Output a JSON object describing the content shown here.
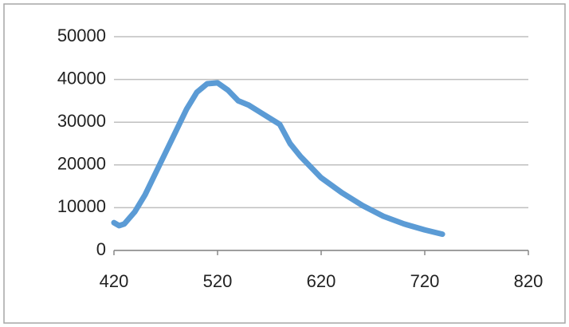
{
  "chart_data": {
    "type": "line",
    "x": [
      420,
      425,
      430,
      440,
      450,
      460,
      470,
      480,
      490,
      500,
      510,
      520,
      530,
      540,
      550,
      560,
      570,
      580,
      590,
      600,
      620,
      640,
      660,
      680,
      700,
      720,
      737
    ],
    "values": [
      6500,
      5800,
      6200,
      9000,
      13000,
      18000,
      23000,
      28000,
      33000,
      37000,
      39000,
      39200,
      37500,
      35000,
      34000,
      32500,
      31000,
      29500,
      25000,
      22000,
      17000,
      13500,
      10500,
      8000,
      6200,
      4800,
      3800
    ],
    "color": "#5b9bd5",
    "xlim": [
      420,
      820
    ],
    "xticks": [
      420,
      520,
      620,
      720,
      820
    ],
    "ylim": [
      0,
      50000
    ],
    "yticks": [
      0,
      10000,
      20000,
      30000,
      40000,
      50000
    ],
    "grid": true
  }
}
